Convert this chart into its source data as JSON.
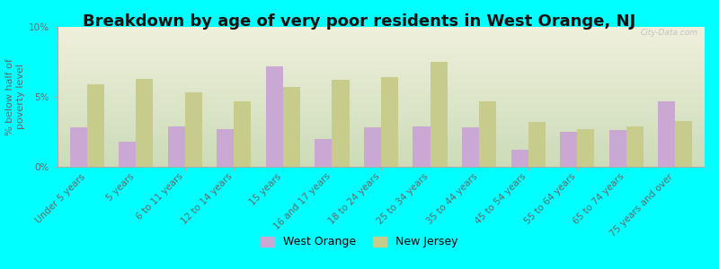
{
  "title": "Breakdown by age of very poor residents in West Orange, NJ",
  "ylabel": "% below half of\npoverty level",
  "categories": [
    "Under 5 years",
    "5 years",
    "6 to 11 years",
    "12 to 14 years",
    "15 years",
    "16 and 17 years",
    "18 to 24 years",
    "25 to 34 years",
    "35 to 44 years",
    "45 to 54 years",
    "55 to 64 years",
    "65 to 74 years",
    "75 years and over"
  ],
  "west_orange": [
    2.8,
    1.8,
    2.9,
    2.7,
    7.2,
    2.0,
    2.8,
    2.9,
    2.8,
    1.2,
    2.5,
    2.6,
    4.7
  ],
  "new_jersey": [
    5.9,
    6.3,
    5.3,
    4.7,
    5.7,
    6.2,
    6.4,
    7.5,
    4.7,
    3.2,
    2.7,
    2.9,
    3.3
  ],
  "wo_color": "#c9a8d4",
  "nj_color": "#c8cc8a",
  "bg_color": "#00ffff",
  "plot_bg_top": "#f0f0dc",
  "plot_bg_bottom": "#ccdcb8",
  "ylim": [
    0,
    10
  ],
  "yticks": [
    0,
    5,
    10
  ],
  "ytick_labels": [
    "0%",
    "5%",
    "10%"
  ],
  "title_fontsize": 13,
  "axis_label_fontsize": 8,
  "tick_fontsize": 7.5,
  "legend_labels": [
    "West Orange",
    "New Jersey"
  ],
  "watermark": "City-Data.com"
}
